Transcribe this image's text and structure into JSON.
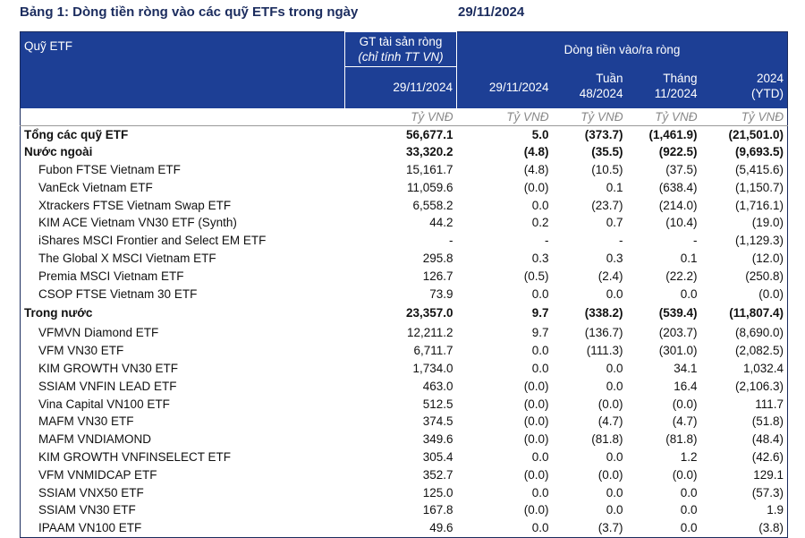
{
  "title": "Bảng 1: Dòng tiền ròng vào các quỹ ETFs trong ngày",
  "date": "29/11/2024",
  "table": {
    "header": {
      "fund": "Quỹ ETF",
      "nav": [
        "GT tài sản ròng",
        "(chỉ tính TT VN)"
      ],
      "nav_date": "29/11/2024",
      "flow": "Dòng tiền vào/ra ròng",
      "flow_columns": [
        [
          "29/11/2024"
        ],
        [
          "Tuần",
          "48/2024"
        ],
        [
          "Tháng",
          "11/2024"
        ],
        [
          "2024",
          "(YTD)"
        ]
      ]
    },
    "units": [
      "Tỷ VNĐ",
      "Tỷ VNĐ",
      "Tỷ VNĐ",
      "Tỷ VNĐ",
      "Tỷ VNĐ"
    ],
    "total": {
      "name": "Tổng các quỹ ETF",
      "values": [
        "56,677.1",
        "5.0",
        "(373.7)",
        "(1,461.9)",
        "(21,501.0)"
      ]
    },
    "sections": [
      {
        "name": "Nước ngoài",
        "values": [
          "33,320.2",
          "(4.8)",
          "(35.5)",
          "(922.5)",
          "(9,693.5)"
        ],
        "funds": [
          {
            "name": "Fubon FTSE Vietnam ETF",
            "values": [
              "15,161.7",
              "(4.8)",
              "(10.5)",
              "(37.5)",
              "(5,415.6)"
            ]
          },
          {
            "name": "VanEck Vietnam ETF",
            "values": [
              "11,059.6",
              "(0.0)",
              "0.1",
              "(638.4)",
              "(1,150.7)"
            ]
          },
          {
            "name": "Xtrackers FTSE Vietnam Swap ETF",
            "values": [
              "6,558.2",
              "0.0",
              "(23.7)",
              "(214.0)",
              "(1,716.1)"
            ]
          },
          {
            "name": "KIM ACE Vietnam VN30 ETF (Synth)",
            "values": [
              "44.2",
              "0.2",
              "0.7",
              "(10.4)",
              "(19.0)"
            ]
          },
          {
            "name": "iShares MSCI Frontier and Select EM ETF",
            "values": [
              "-",
              "-",
              "-",
              "-",
              "(1,129.3)"
            ]
          },
          {
            "name": "The Global X MSCI Vietnam ETF",
            "values": [
              "295.8",
              "0.3",
              "0.3",
              "0.1",
              "(12.0)"
            ]
          },
          {
            "name": "Premia MSCI Vietnam ETF",
            "values": [
              "126.7",
              "(0.5)",
              "(2.4)",
              "(22.2)",
              "(250.8)"
            ]
          },
          {
            "name": "CSOP FTSE Vietnam 30 ETF",
            "values": [
              "73.9",
              "0.0",
              "0.0",
              "0.0",
              "(0.0)"
            ]
          }
        ]
      },
      {
        "name": "Trong nước",
        "values": [
          "23,357.0",
          "9.7",
          "(338.2)",
          "(539.4)",
          "(11,807.4)"
        ],
        "funds": [
          {
            "name": "VFMVN Diamond ETF",
            "values": [
              "12,211.2",
              "9.7",
              "(136.7)",
              "(203.7)",
              "(8,690.0)"
            ]
          },
          {
            "name": "VFM VN30 ETF",
            "values": [
              "6,711.7",
              "0.0",
              "(111.3)",
              "(301.0)",
              "(2,082.5)"
            ]
          },
          {
            "name": "KIM GROWTH VN30 ETF",
            "values": [
              "1,734.0",
              "0.0",
              "0.0",
              "34.1",
              "1,032.4"
            ]
          },
          {
            "name": "SSIAM VNFIN LEAD ETF",
            "values": [
              "463.0",
              "(0.0)",
              "0.0",
              "16.4",
              "(2,106.3)"
            ]
          },
          {
            "name": "Vina Capital VN100 ETF",
            "values": [
              "512.5",
              "(0.0)",
              "(0.0)",
              "(0.0)",
              "111.7"
            ]
          },
          {
            "name": "MAFM VN30 ETF",
            "values": [
              "374.5",
              "(0.0)",
              "(4.7)",
              "(4.7)",
              "(51.8)"
            ]
          },
          {
            "name": "MAFM VNDIAMOND",
            "values": [
              "349.6",
              "(0.0)",
              "(81.8)",
              "(81.8)",
              "(48.4)"
            ]
          },
          {
            "name": "KIM GROWTH VNFINSELECT ETF",
            "values": [
              "305.4",
              "0.0",
              "0.0",
              "1.2",
              "(42.6)"
            ]
          },
          {
            "name": "VFM VNMIDCAP ETF",
            "values": [
              "352.7",
              "(0.0)",
              "(0.0)",
              "(0.0)",
              "129.1"
            ]
          },
          {
            "name": "SSIAM VNX50 ETF",
            "values": [
              "125.0",
              "0.0",
              "0.0",
              "0.0",
              "(57.3)"
            ]
          },
          {
            "name": "SSIAM VN30 ETF",
            "values": [
              "167.8",
              "(0.0)",
              "0.0",
              "0.0",
              "1.9"
            ]
          },
          {
            "name": "IPAAM VN100 ETF",
            "values": [
              "49.6",
              "0.0",
              "(3.7)",
              "0.0",
              "(3.8)"
            ]
          }
        ]
      }
    ]
  }
}
